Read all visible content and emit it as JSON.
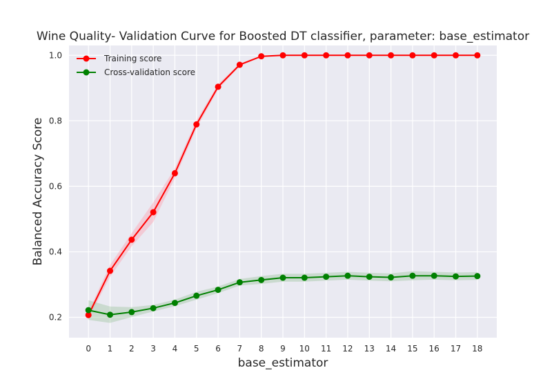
{
  "chart_data": {
    "type": "line",
    "title": "Wine Quality- Validation Curve for Boosted DT classifier, parameter: base_estimator",
    "xlabel": "base_estimator",
    "ylabel": "Balanced Accuracy Score",
    "x": [
      0,
      1,
      2,
      3,
      4,
      5,
      6,
      7,
      8,
      9,
      10,
      11,
      12,
      13,
      14,
      15,
      16,
      17,
      18
    ],
    "xlim": [
      -0.9,
      18.9
    ],
    "ylim": [
      0.138,
      1.03
    ],
    "xticks": [
      "0",
      "1",
      "2",
      "3",
      "4",
      "5",
      "6",
      "7",
      "8",
      "9",
      "10",
      "11",
      "12",
      "13",
      "14",
      "15",
      "16",
      "17",
      "18"
    ],
    "yticks": [
      "0.2",
      "0.4",
      "0.6",
      "0.8",
      "1.0"
    ],
    "grid": true,
    "legend_position": "top-left",
    "series": [
      {
        "name": "Training score",
        "color": "#ff0000",
        "band_color": "#ff9aaa",
        "values": [
          0.207,
          0.342,
          0.437,
          0.521,
          0.64,
          0.789,
          0.904,
          0.971,
          0.997,
          1.0,
          1.0,
          1.0,
          1.0,
          1.0,
          1.0,
          1.0,
          1.0,
          1.0,
          1.0
        ],
        "std": [
          0.01,
          0.018,
          0.02,
          0.03,
          0.015,
          0.012,
          0.008,
          0.004,
          0.002,
          0.0,
          0.0,
          0.0,
          0.0,
          0.0,
          0.0,
          0.0,
          0.0,
          0.0,
          0.0
        ]
      },
      {
        "name": "Cross-validation score",
        "color": "#008000",
        "band_color": "#9bc49b",
        "values": [
          0.222,
          0.208,
          0.216,
          0.228,
          0.244,
          0.266,
          0.284,
          0.307,
          0.314,
          0.321,
          0.321,
          0.324,
          0.327,
          0.324,
          0.322,
          0.327,
          0.327,
          0.325,
          0.326
        ],
        "std": [
          0.03,
          0.025,
          0.015,
          0.01,
          0.01,
          0.012,
          0.01,
          0.01,
          0.012,
          0.012,
          0.012,
          0.012,
          0.012,
          0.012,
          0.012,
          0.014,
          0.012,
          0.012,
          0.012
        ]
      }
    ]
  }
}
